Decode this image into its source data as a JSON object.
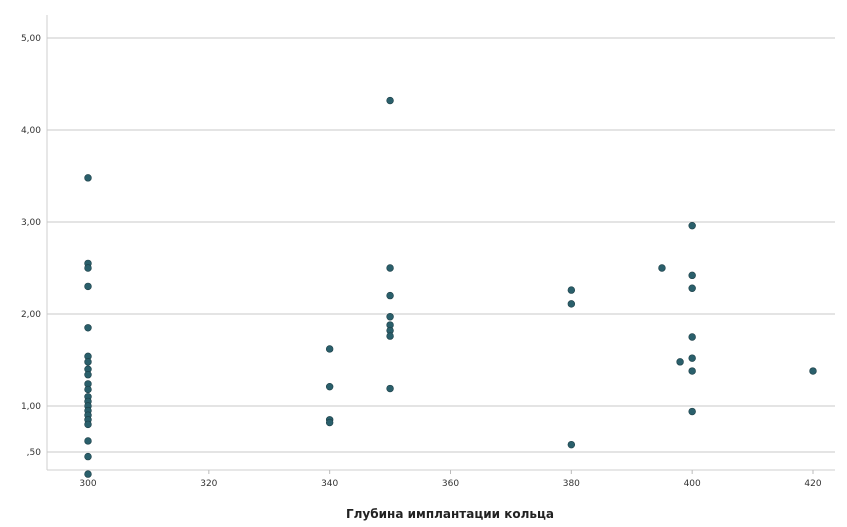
{
  "chart_data": {
    "type": "scatter",
    "title": "",
    "xlabel": "Глубина имплантации кольца",
    "ylabel": "",
    "xlim": [
      300,
      420
    ],
    "ylim": [
      0.5,
      5.0
    ],
    "x_ticks": [
      300,
      320,
      340,
      360,
      380,
      400,
      420
    ],
    "y_ticks": [
      0.5,
      1.0,
      2.0,
      3.0,
      4.0,
      5.0
    ],
    "x_tick_labels": [
      "300",
      "320",
      "340",
      "360",
      "380",
      "400",
      "420"
    ],
    "y_tick_labels": [
      ",50",
      "1,00",
      "2,00",
      "3,00",
      "4,00",
      "5,00"
    ],
    "grid": "horizontal",
    "marker_color": "#2a5f6b",
    "series": [
      {
        "points": [
          {
            "x": 300,
            "y": 3.48
          },
          {
            "x": 300,
            "y": 2.55
          },
          {
            "x": 300,
            "y": 2.5
          },
          {
            "x": 300,
            "y": 2.3
          },
          {
            "x": 300,
            "y": 1.85
          },
          {
            "x": 300,
            "y": 1.54
          },
          {
            "x": 300,
            "y": 1.48
          },
          {
            "x": 300,
            "y": 1.4
          },
          {
            "x": 300,
            "y": 1.34
          },
          {
            "x": 300,
            "y": 1.24
          },
          {
            "x": 300,
            "y": 1.18
          },
          {
            "x": 300,
            "y": 1.1
          },
          {
            "x": 300,
            "y": 1.05
          },
          {
            "x": 300,
            "y": 1.0
          },
          {
            "x": 300,
            "y": 0.95
          },
          {
            "x": 300,
            "y": 0.9
          },
          {
            "x": 300,
            "y": 0.85
          },
          {
            "x": 300,
            "y": 0.8
          },
          {
            "x": 300,
            "y": 0.62
          },
          {
            "x": 300,
            "y": 0.45
          },
          {
            "x": 300,
            "y": 0.26
          },
          {
            "x": 340,
            "y": 1.62
          },
          {
            "x": 340,
            "y": 1.21
          },
          {
            "x": 340,
            "y": 0.85
          },
          {
            "x": 340,
            "y": 0.82
          },
          {
            "x": 350,
            "y": 4.32
          },
          {
            "x": 350,
            "y": 2.5
          },
          {
            "x": 350,
            "y": 2.2
          },
          {
            "x": 350,
            "y": 1.97
          },
          {
            "x": 350,
            "y": 1.88
          },
          {
            "x": 350,
            "y": 1.82
          },
          {
            "x": 350,
            "y": 1.76
          },
          {
            "x": 350,
            "y": 1.19
          },
          {
            "x": 380,
            "y": 2.26
          },
          {
            "x": 380,
            "y": 2.11
          },
          {
            "x": 380,
            "y": 0.58
          },
          {
            "x": 395,
            "y": 2.5
          },
          {
            "x": 398,
            "y": 1.48
          },
          {
            "x": 400,
            "y": 2.96
          },
          {
            "x": 400,
            "y": 2.42
          },
          {
            "x": 400,
            "y": 2.28
          },
          {
            "x": 400,
            "y": 1.75
          },
          {
            "x": 400,
            "y": 1.52
          },
          {
            "x": 400,
            "y": 1.38
          },
          {
            "x": 400,
            "y": 0.94
          },
          {
            "x": 420,
            "y": 1.38
          }
        ]
      }
    ]
  }
}
